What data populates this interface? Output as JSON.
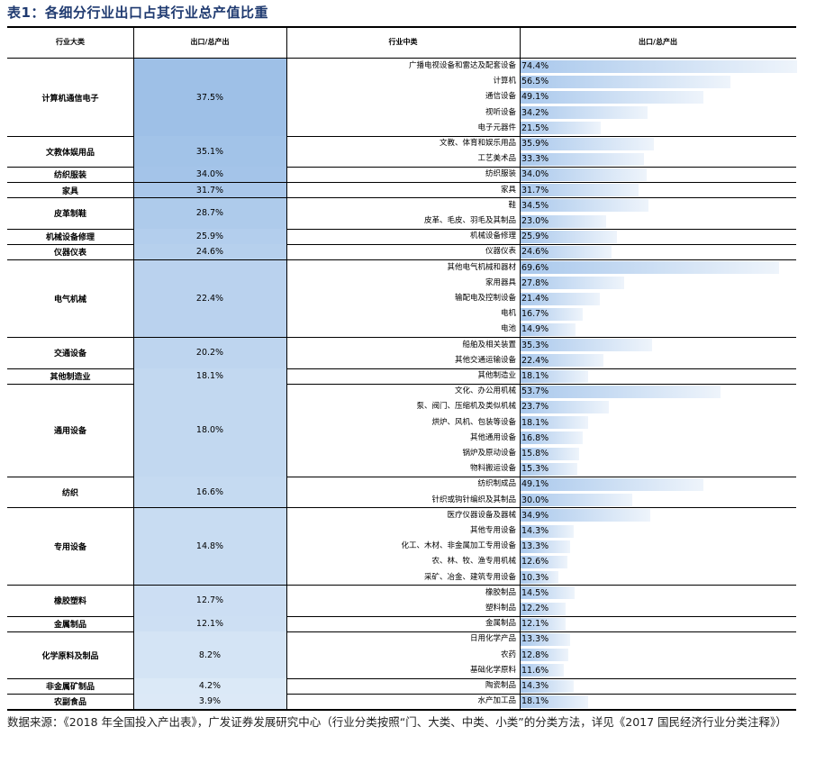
{
  "title": "表1：各细分行业出口占其行业总产值比重",
  "headers": {
    "group": "行业大类",
    "group_share": "出口/总产出",
    "sub": "行业中类",
    "sub_share": "出口/总产出"
  },
  "colors": {
    "share_high": "#9ec0e7",
    "share_low": "#dce9f7",
    "bar": "#a9c8ec"
  },
  "groups": [
    {
      "name": "计算机通信电子",
      "share": "37.5%",
      "share_value": 37.5,
      "subs": [
        {
          "name": "广播电视设备和雷达及配套设备",
          "label": "74.4%",
          "value": 74.4
        },
        {
          "name": "计算机",
          "label": "56.5%",
          "value": 56.5
        },
        {
          "name": "通信设备",
          "label": "49.1%",
          "value": 49.1
        },
        {
          "name": "视听设备",
          "label": "34.2%",
          "value": 34.2
        },
        {
          "name": "电子元器件",
          "label": "21.5%",
          "value": 21.5
        }
      ]
    },
    {
      "name": "文教体娱用品",
      "share": "35.1%",
      "share_value": 35.1,
      "subs": [
        {
          "name": "文教、体育和娱乐用品",
          "label": "35.9%",
          "value": 35.9
        },
        {
          "name": "工艺美术品",
          "label": "33.3%",
          "value": 33.3
        }
      ]
    },
    {
      "name": "纺织服装",
      "share": "34.0%",
      "share_value": 34.0,
      "subs": [
        {
          "name": "纺织服装",
          "label": "34.0%",
          "value": 34.0
        }
      ]
    },
    {
      "name": "家具",
      "share": "31.7%",
      "share_value": 31.7,
      "subs": [
        {
          "name": "家具",
          "label": "31.7%",
          "value": 31.7
        }
      ]
    },
    {
      "name": "皮革制鞋",
      "share": "28.7%",
      "share_value": 28.7,
      "subs": [
        {
          "name": "鞋",
          "label": "34.5%",
          "value": 34.5
        },
        {
          "name": "皮革、毛皮、羽毛及其制品",
          "label": "23.0%",
          "value": 23.0
        }
      ]
    },
    {
      "name": "机械设备修理",
      "share": "25.9%",
      "share_value": 25.9,
      "subs": [
        {
          "name": "机械设备修理",
          "label": "25.9%",
          "value": 25.9
        }
      ]
    },
    {
      "name": "仪器仪表",
      "share": "24.6%",
      "share_value": 24.6,
      "subs": [
        {
          "name": "仪器仪表",
          "label": "24.6%",
          "value": 24.6
        }
      ]
    },
    {
      "name": "电气机械",
      "share": "22.4%",
      "share_value": 22.4,
      "subs": [
        {
          "name": "其他电气机械和器材",
          "label": "69.6%",
          "value": 69.6
        },
        {
          "name": "家用器具",
          "label": "27.8%",
          "value": 27.8
        },
        {
          "name": "输配电及控制设备",
          "label": "21.4%",
          "value": 21.4
        },
        {
          "name": "电机",
          "label": "16.7%",
          "value": 16.7
        },
        {
          "name": "电池",
          "label": "14.9%",
          "value": 14.9
        }
      ]
    },
    {
      "name": "交通设备",
      "share": "20.2%",
      "share_value": 20.2,
      "subs": [
        {
          "name": "船舶及相关装置",
          "label": "35.3%",
          "value": 35.3
        },
        {
          "name": "其他交通运输设备",
          "label": "22.4%",
          "value": 22.4
        }
      ]
    },
    {
      "name": "其他制造业",
      "share": "18.1%",
      "share_value": 18.1,
      "subs": [
        {
          "name": "其他制造业",
          "label": "18.1%",
          "value": 18.1
        }
      ]
    },
    {
      "name": "通用设备",
      "share": "18.0%",
      "share_value": 18.0,
      "subs": [
        {
          "name": "文化、办公用机械",
          "label": "53.7%",
          "value": 53.7
        },
        {
          "name": "泵、阀门、压缩机及类似机械",
          "label": "23.7%",
          "value": 23.7
        },
        {
          "name": "烘炉、风机、包装等设备",
          "label": "18.1%",
          "value": 18.1
        },
        {
          "name": "其他通用设备",
          "label": "16.8%",
          "value": 16.8
        },
        {
          "name": "锅炉及原动设备",
          "label": "15.8%",
          "value": 15.8
        },
        {
          "name": "物料搬运设备",
          "label": "15.3%",
          "value": 15.3
        }
      ]
    },
    {
      "name": "纺织",
      "share": "16.6%",
      "share_value": 16.6,
      "subs": [
        {
          "name": "纺织制成品",
          "label": "49.1%",
          "value": 49.1
        },
        {
          "name": "针织或钩针编织及其制品",
          "label": "30.0%",
          "value": 30.0
        }
      ]
    },
    {
      "name": "专用设备",
      "share": "14.8%",
      "share_value": 14.8,
      "subs": [
        {
          "name": "医疗仪器设备及器械",
          "label": "34.9%",
          "value": 34.9
        },
        {
          "name": "其他专用设备",
          "label": "14.3%",
          "value": 14.3
        },
        {
          "name": "化工、木材、非金属加工专用设备",
          "label": "13.3%",
          "value": 13.3
        },
        {
          "name": "农、林、牧、渔专用机械",
          "label": "12.6%",
          "value": 12.6
        },
        {
          "name": "采矿、冶金、建筑专用设备",
          "label": "10.3%",
          "value": 10.3
        }
      ]
    },
    {
      "name": "橡胶塑料",
      "share": "12.7%",
      "share_value": 12.7,
      "subs": [
        {
          "name": "橡胶制品",
          "label": "14.5%",
          "value": 14.5
        },
        {
          "name": "塑料制品",
          "label": "12.2%",
          "value": 12.2
        }
      ]
    },
    {
      "name": "金属制品",
      "share": "12.1%",
      "share_value": 12.1,
      "subs": [
        {
          "name": "金属制品",
          "label": "12.1%",
          "value": 12.1
        }
      ]
    },
    {
      "name": "化学原料及制品",
      "share": "8.2%",
      "share_value": 8.2,
      "subs": [
        {
          "name": "日用化学产品",
          "label": "13.3%",
          "value": 13.3
        },
        {
          "name": "农药",
          "label": "12.8%",
          "value": 12.8
        },
        {
          "name": "基础化学原料",
          "label": "11.6%",
          "value": 11.6
        }
      ]
    },
    {
      "name": "非金属矿制品",
      "share": "4.2%",
      "share_value": 4.2,
      "subs": [
        {
          "name": "陶瓷制品",
          "label": "14.3%",
          "value": 14.3
        }
      ]
    },
    {
      "name": "农副食品",
      "share": "3.9%",
      "share_value": 3.9,
      "subs": [
        {
          "name": "水产加工品",
          "label": "18.1%",
          "value": 18.1
        }
      ]
    }
  ],
  "note": "数据来源：《2018 年全国投入产出表》，广发证券发展研究中心（行业分类按照“门、大类、中类、小类”的分类方法，详见《2017 国民经济行业分类注释》）"
}
